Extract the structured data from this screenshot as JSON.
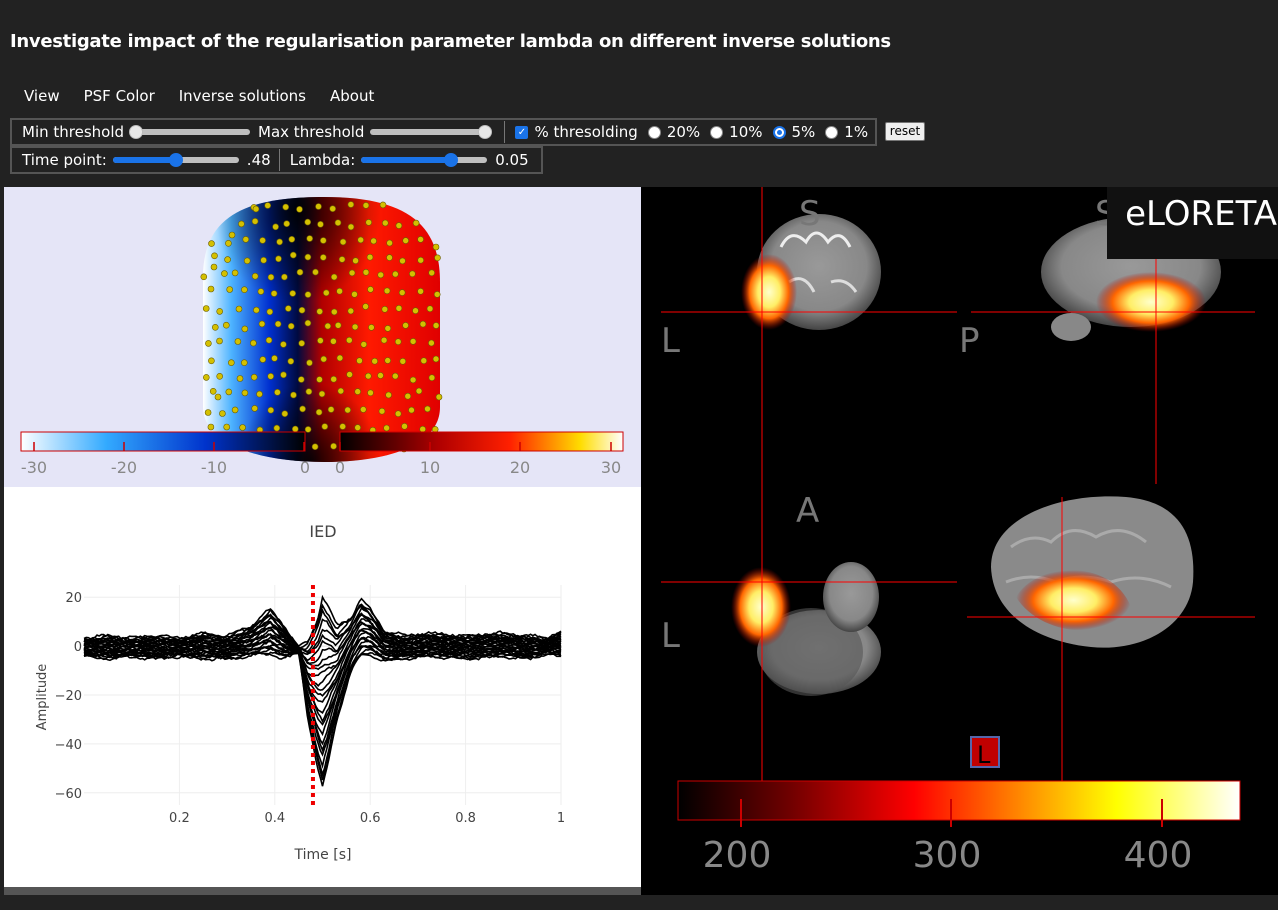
{
  "title": "Investigate impact of the regularisation parameter lambda on different inverse solutions",
  "menu": [
    "View",
    "PSF Color",
    "Inverse solutions",
    "About"
  ],
  "controls": {
    "min_threshold_label": "Min threshold",
    "max_threshold_label": "Max threshold",
    "min_threshold_value": 0.0,
    "max_threshold_value": 1.0,
    "pct_thresholding_label": "% thresolding",
    "pct_thresholding_checked": true,
    "pct_options": [
      "20%",
      "10%",
      "5%",
      "1%"
    ],
    "pct_selected": "5%",
    "reset_label": "reset",
    "time_point_label": "Time point:",
    "time_point_value": ".48",
    "time_point_fraction": 0.48,
    "lambda_label": "Lambda:",
    "lambda_value": "0.05",
    "lambda_fraction": 0.7
  },
  "topomap": {
    "colorbar_ticks": [
      "-30",
      "-20",
      "-10",
      "0",
      "0",
      "10",
      "20",
      "30"
    ],
    "colorscale": [
      "#ffffff",
      "#00aaff",
      "#0033cc",
      "#000000",
      "#000000",
      "#b00000",
      "#ff2000",
      "#ffcc00",
      "#ffffff"
    ]
  },
  "brain_view": {
    "method": "eLORETA",
    "labels": {
      "superior": "S",
      "superior2": "S",
      "left": "L",
      "posterior": "P",
      "anterior": "A",
      "left2": "L"
    },
    "orientation_cube_label": "L",
    "colorbar_ticks": [
      "200",
      "300",
      "400"
    ],
    "colorscale": [
      "#000000",
      "#800000",
      "#ff0000",
      "#ff8000",
      "#ffff00",
      "#ffffff"
    ]
  },
  "chart_data": {
    "type": "line",
    "title": "IED",
    "xlabel": "Time [s]",
    "ylabel": "Amplitude",
    "xlim": [
      0,
      1
    ],
    "ylim": [
      -65,
      25
    ],
    "xticks": [
      0.2,
      0.4,
      0.6,
      0.8,
      1
    ],
    "xtick_labels": [
      "0.2",
      "0.4",
      "0.6",
      "0.8",
      "1"
    ],
    "yticks": [
      20,
      0,
      -20,
      -40,
      -60
    ],
    "ytick_labels": [
      "20",
      "0",
      "−20",
      "−40",
      "−60"
    ],
    "cursor_x": 0.48,
    "envelope": {
      "x": [
        0.0,
        0.05,
        0.1,
        0.15,
        0.2,
        0.25,
        0.3,
        0.35,
        0.39,
        0.42,
        0.45,
        0.47,
        0.49,
        0.5,
        0.51,
        0.53,
        0.56,
        0.58,
        0.6,
        0.63,
        0.67,
        0.72,
        0.8,
        0.87,
        0.93,
        0.97,
        1.0
      ],
      "upper": [
        3,
        4,
        3,
        4,
        3,
        5,
        4,
        8,
        15,
        8,
        -1,
        2,
        12,
        20,
        17,
        8,
        12,
        19,
        15,
        6,
        4,
        5,
        4,
        5,
        4,
        3,
        6
      ],
      "lower": [
        -4,
        -5,
        -4,
        -5,
        -4,
        -5,
        -5,
        -4,
        -3,
        -5,
        -2,
        -30,
        -50,
        -58,
        -50,
        -30,
        -10,
        -4,
        -3,
        -6,
        -5,
        -4,
        -5,
        -4,
        -5,
        -3,
        -4
      ]
    }
  }
}
